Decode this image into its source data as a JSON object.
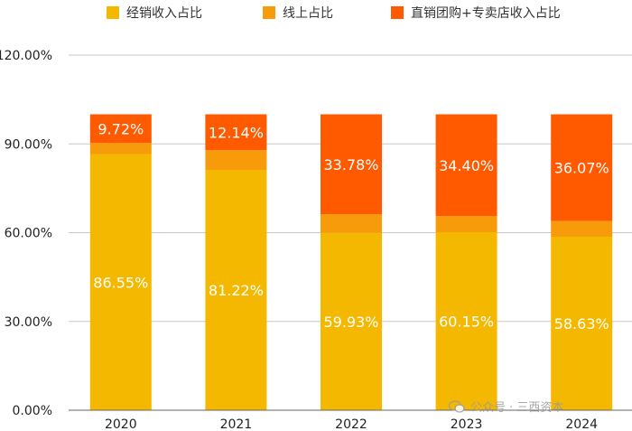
{
  "chart_data": {
    "type": "bar",
    "stacked": true,
    "categories": [
      "2020",
      "2021",
      "2022",
      "2023",
      "2024"
    ],
    "series": [
      {
        "name": "经销收入占比",
        "color": "#F5B800",
        "values": [
          86.55,
          81.22,
          59.93,
          60.15,
          58.63
        ],
        "labels": [
          "86.55%",
          "81.22%",
          "59.93%",
          "60.15%",
          "58.63%"
        ]
      },
      {
        "name": "线上占比",
        "color": "#F79B0B",
        "values": [
          3.73,
          6.64,
          6.29,
          5.45,
          5.3
        ],
        "labels": [
          "",
          "",
          "",
          "",
          ""
        ]
      },
      {
        "name": "直销团购+专卖店收入占比",
        "color": "#FF5A00",
        "values": [
          9.72,
          12.14,
          33.78,
          34.4,
          36.07
        ],
        "labels": [
          "9.72%",
          "12.14%",
          "33.78%",
          "34.40%",
          "36.07%"
        ]
      }
    ],
    "yticks": [
      "0.00%",
      "30.00%",
      "60.00%",
      "90.00%",
      "120.00%"
    ],
    "ylim": [
      0,
      120
    ],
    "ytick_values": [
      0,
      30,
      60,
      90,
      120
    ],
    "grid": true,
    "legend": "top",
    "xlabel": "",
    "ylabel": ""
  },
  "watermark": {
    "text": "公众号 · 三西资本",
    "icon": "wechat-icon"
  }
}
